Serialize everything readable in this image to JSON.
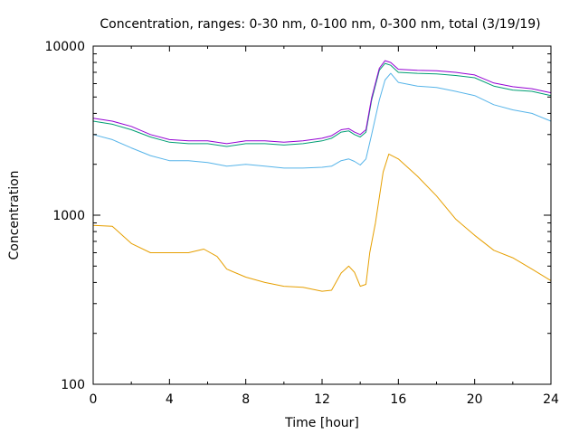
{
  "chart_data": {
    "type": "line",
    "title": "Concentration, ranges: 0-30 nm, 0-100 nm, 0-300 nm, total (3/19/19)",
    "xlabel": "Time [hour]",
    "ylabel": "Concentration",
    "xlim": [
      0,
      24
    ],
    "ylim": [
      100,
      10000
    ],
    "yscale": "log",
    "grid": false,
    "xticks": [
      0,
      4,
      8,
      12,
      16,
      20,
      24
    ],
    "xtick_labels": [
      "0",
      "4",
      "8",
      "12",
      "16",
      "20",
      "24"
    ],
    "yticks": [
      100,
      1000,
      10000
    ],
    "ytick_labels": [
      "100",
      "1000",
      "10000"
    ],
    "series": [
      {
        "color": "#e69f00",
        "x": [
          0,
          1,
          2,
          3,
          4,
          5,
          5.8,
          6.5,
          7,
          8,
          9,
          10,
          11,
          12,
          12.5,
          13,
          13.4,
          13.7,
          14,
          14.3,
          14.5,
          14.8,
          15.2,
          15.5,
          16,
          17,
          18,
          19,
          20,
          21,
          22,
          23,
          24
        ],
        "y": [
          870,
          860,
          680,
          600,
          600,
          600,
          630,
          570,
          480,
          430,
          400,
          380,
          375,
          355,
          360,
          455,
          500,
          460,
          380,
          390,
          600,
          900,
          1800,
          2300,
          2150,
          1700,
          1300,
          950,
          760,
          620,
          560,
          480,
          410
        ]
      },
      {
        "color": "#56b4e9",
        "x": [
          0,
          1,
          2,
          3,
          4,
          5,
          6,
          7,
          8,
          9,
          10,
          11,
          12,
          12.5,
          13,
          13.4,
          13.7,
          14,
          14.3,
          14.6,
          15,
          15.3,
          15.6,
          16,
          17,
          18,
          19,
          20,
          21,
          22,
          23,
          24
        ],
        "y": [
          3000,
          2800,
          2500,
          2250,
          2100,
          2100,
          2050,
          1950,
          2000,
          1950,
          1900,
          1900,
          1920,
          1950,
          2100,
          2150,
          2080,
          1980,
          2150,
          3000,
          4800,
          6300,
          6900,
          6100,
          5800,
          5700,
          5400,
          5100,
          4500,
          4200,
          4000,
          3600
        ]
      },
      {
        "color": "#009e73",
        "x": [
          0,
          1,
          2,
          3,
          4,
          5,
          6,
          7,
          8,
          9,
          10,
          11,
          12,
          12.5,
          13,
          13.4,
          13.7,
          14,
          14.3,
          14.6,
          15,
          15.3,
          15.6,
          16,
          17,
          18,
          19,
          20,
          21,
          22,
          23,
          24
        ],
        "y": [
          3600,
          3450,
          3200,
          2900,
          2700,
          2650,
          2650,
          2550,
          2650,
          2650,
          2600,
          2650,
          2750,
          2850,
          3100,
          3150,
          3000,
          2900,
          3100,
          4800,
          7200,
          7900,
          7700,
          7000,
          6900,
          6850,
          6700,
          6500,
          5800,
          5500,
          5400,
          5100
        ]
      },
      {
        "color": "#9400d3",
        "x": [
          0,
          1,
          2,
          3,
          4,
          5,
          6,
          7,
          8,
          9,
          10,
          11,
          12,
          12.5,
          13,
          13.4,
          13.7,
          14,
          14.3,
          14.6,
          15,
          15.3,
          15.6,
          16,
          17,
          18,
          19,
          20,
          21,
          22,
          23,
          24
        ],
        "y": [
          3750,
          3600,
          3350,
          3000,
          2800,
          2750,
          2750,
          2650,
          2750,
          2750,
          2700,
          2750,
          2850,
          2950,
          3200,
          3250,
          3100,
          3000,
          3200,
          4950,
          7400,
          8200,
          8000,
          7300,
          7200,
          7150,
          7000,
          6750,
          6050,
          5750,
          5600,
          5300
        ]
      }
    ]
  }
}
